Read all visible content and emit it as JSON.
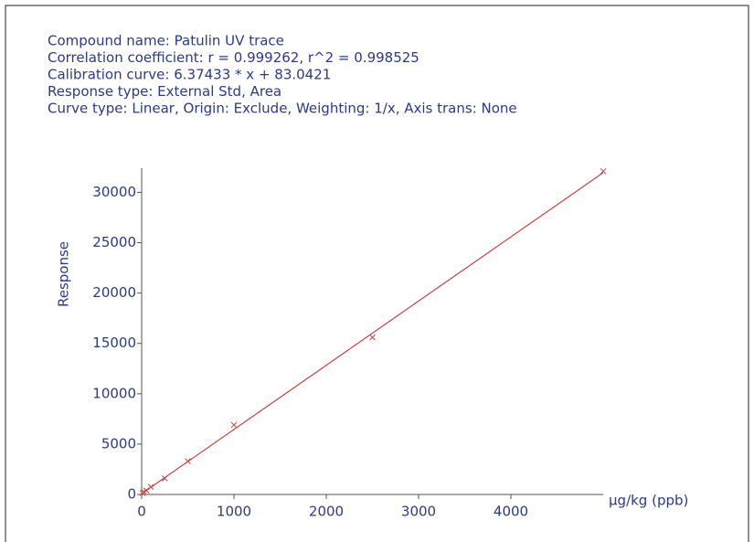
{
  "chart_data": {
    "type": "scatter",
    "annotations": [
      "Compound name: Patulin UV trace",
      "Correlation coefficient: r = 0.999262, r^2 = 0.998525",
      "Calibration curve: 6.37433 * x + 83.0421",
      "Response type: External Std, Area",
      "Curve type: Linear, Origin: Exclude, Weighting: 1/x, Axis trans: None"
    ],
    "xlabel": "µg/kg (ppb)",
    "ylabel": "Response",
    "x": [
      10,
      25,
      50,
      100,
      250,
      500,
      1000,
      2500,
      5000
    ],
    "values": [
      150,
      250,
      400,
      750,
      1600,
      3300,
      6900,
      15600,
      32100
    ],
    "color": "#cc4444",
    "fit": {
      "x": [
        0,
        5000
      ],
      "values": [
        83,
        31955
      ],
      "color": "#cc4444"
    },
    "xlim": [
      0,
      5000
    ],
    "xticks": [
      0,
      1000,
      2000,
      3000,
      4000
    ],
    "ylim": [
      0,
      32400
    ],
    "yticks": [
      0,
      5000,
      10000,
      15000,
      20000,
      25000,
      30000
    ]
  }
}
